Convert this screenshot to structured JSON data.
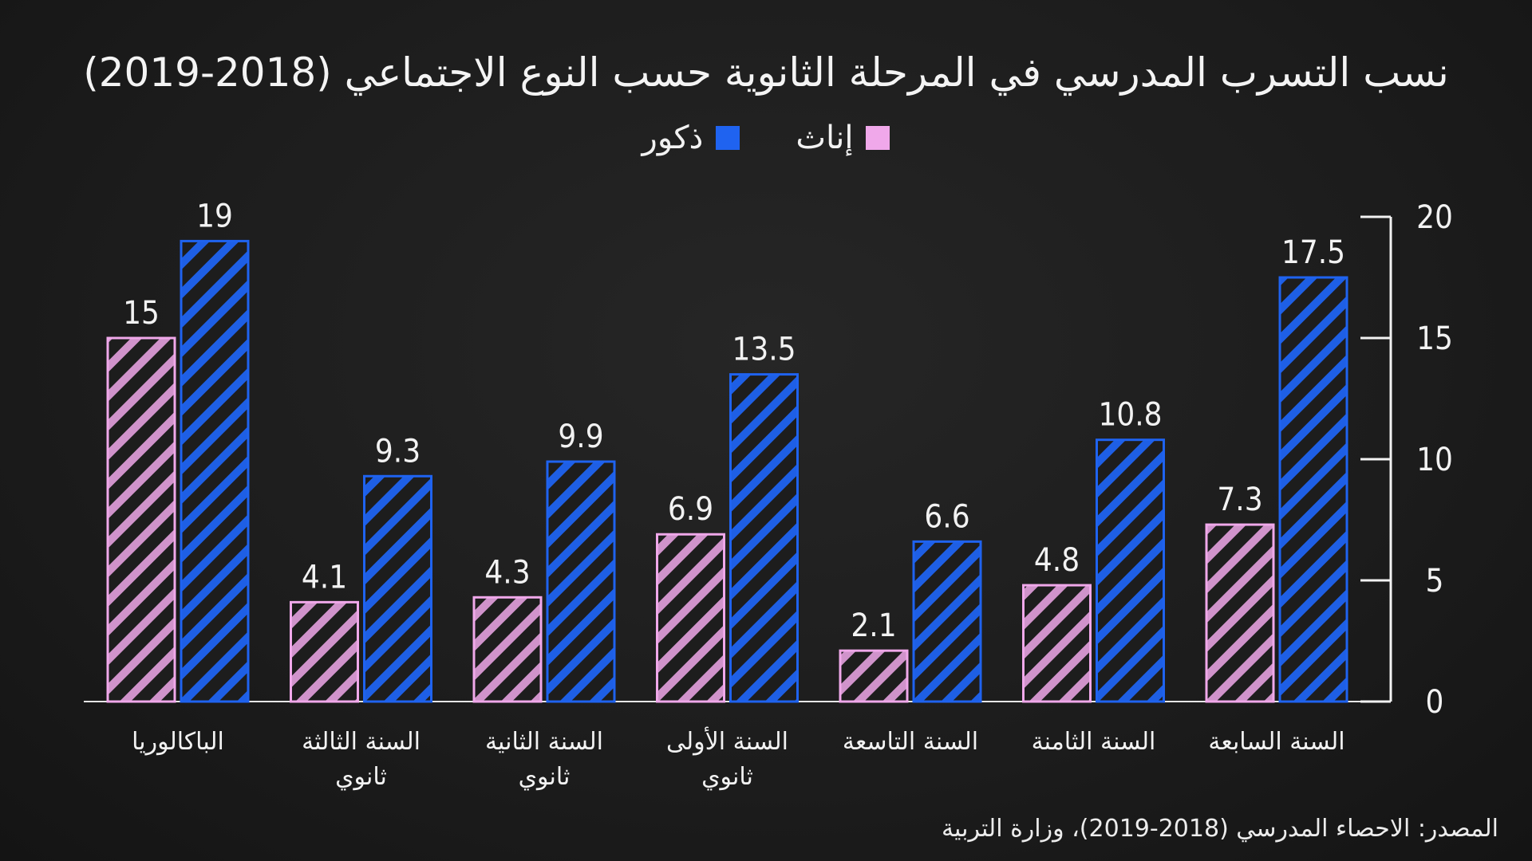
{
  "chart_data": {
    "type": "bar",
    "title": "نسب التسرب المدرسي في المرحلة الثانوية حسب النوع الاجتماعي (2018-2019)",
    "categories": [
      [
        "السنة السابعة"
      ],
      [
        "السنة الثامنة"
      ],
      [
        "السنة التاسعة"
      ],
      [
        "السنة الأولى",
        "ثانوي"
      ],
      [
        "السنة الثانية",
        "ثانوي"
      ],
      [
        "السنة الثالثة",
        "ثانوي"
      ],
      [
        "الباكالوريا"
      ]
    ],
    "series": [
      {
        "name": "إناث",
        "color": "#f0a8ea",
        "values": [
          7.3,
          4.8,
          2.1,
          6.9,
          4.3,
          4.1,
          15
        ]
      },
      {
        "name": "ذكور",
        "color": "#1f63f0",
        "values": [
          17.5,
          10.8,
          6.6,
          13.5,
          9.9,
          9.3,
          19
        ]
      }
    ],
    "ylim": [
      0,
      20
    ],
    "yticks": [
      0,
      5,
      10,
      15,
      20
    ],
    "axis_side": "right",
    "legend_position": "top-center",
    "grid": false
  },
  "source": "المصدر: الاحصاء المدرسي (2018-2019)، وزارة التربية"
}
